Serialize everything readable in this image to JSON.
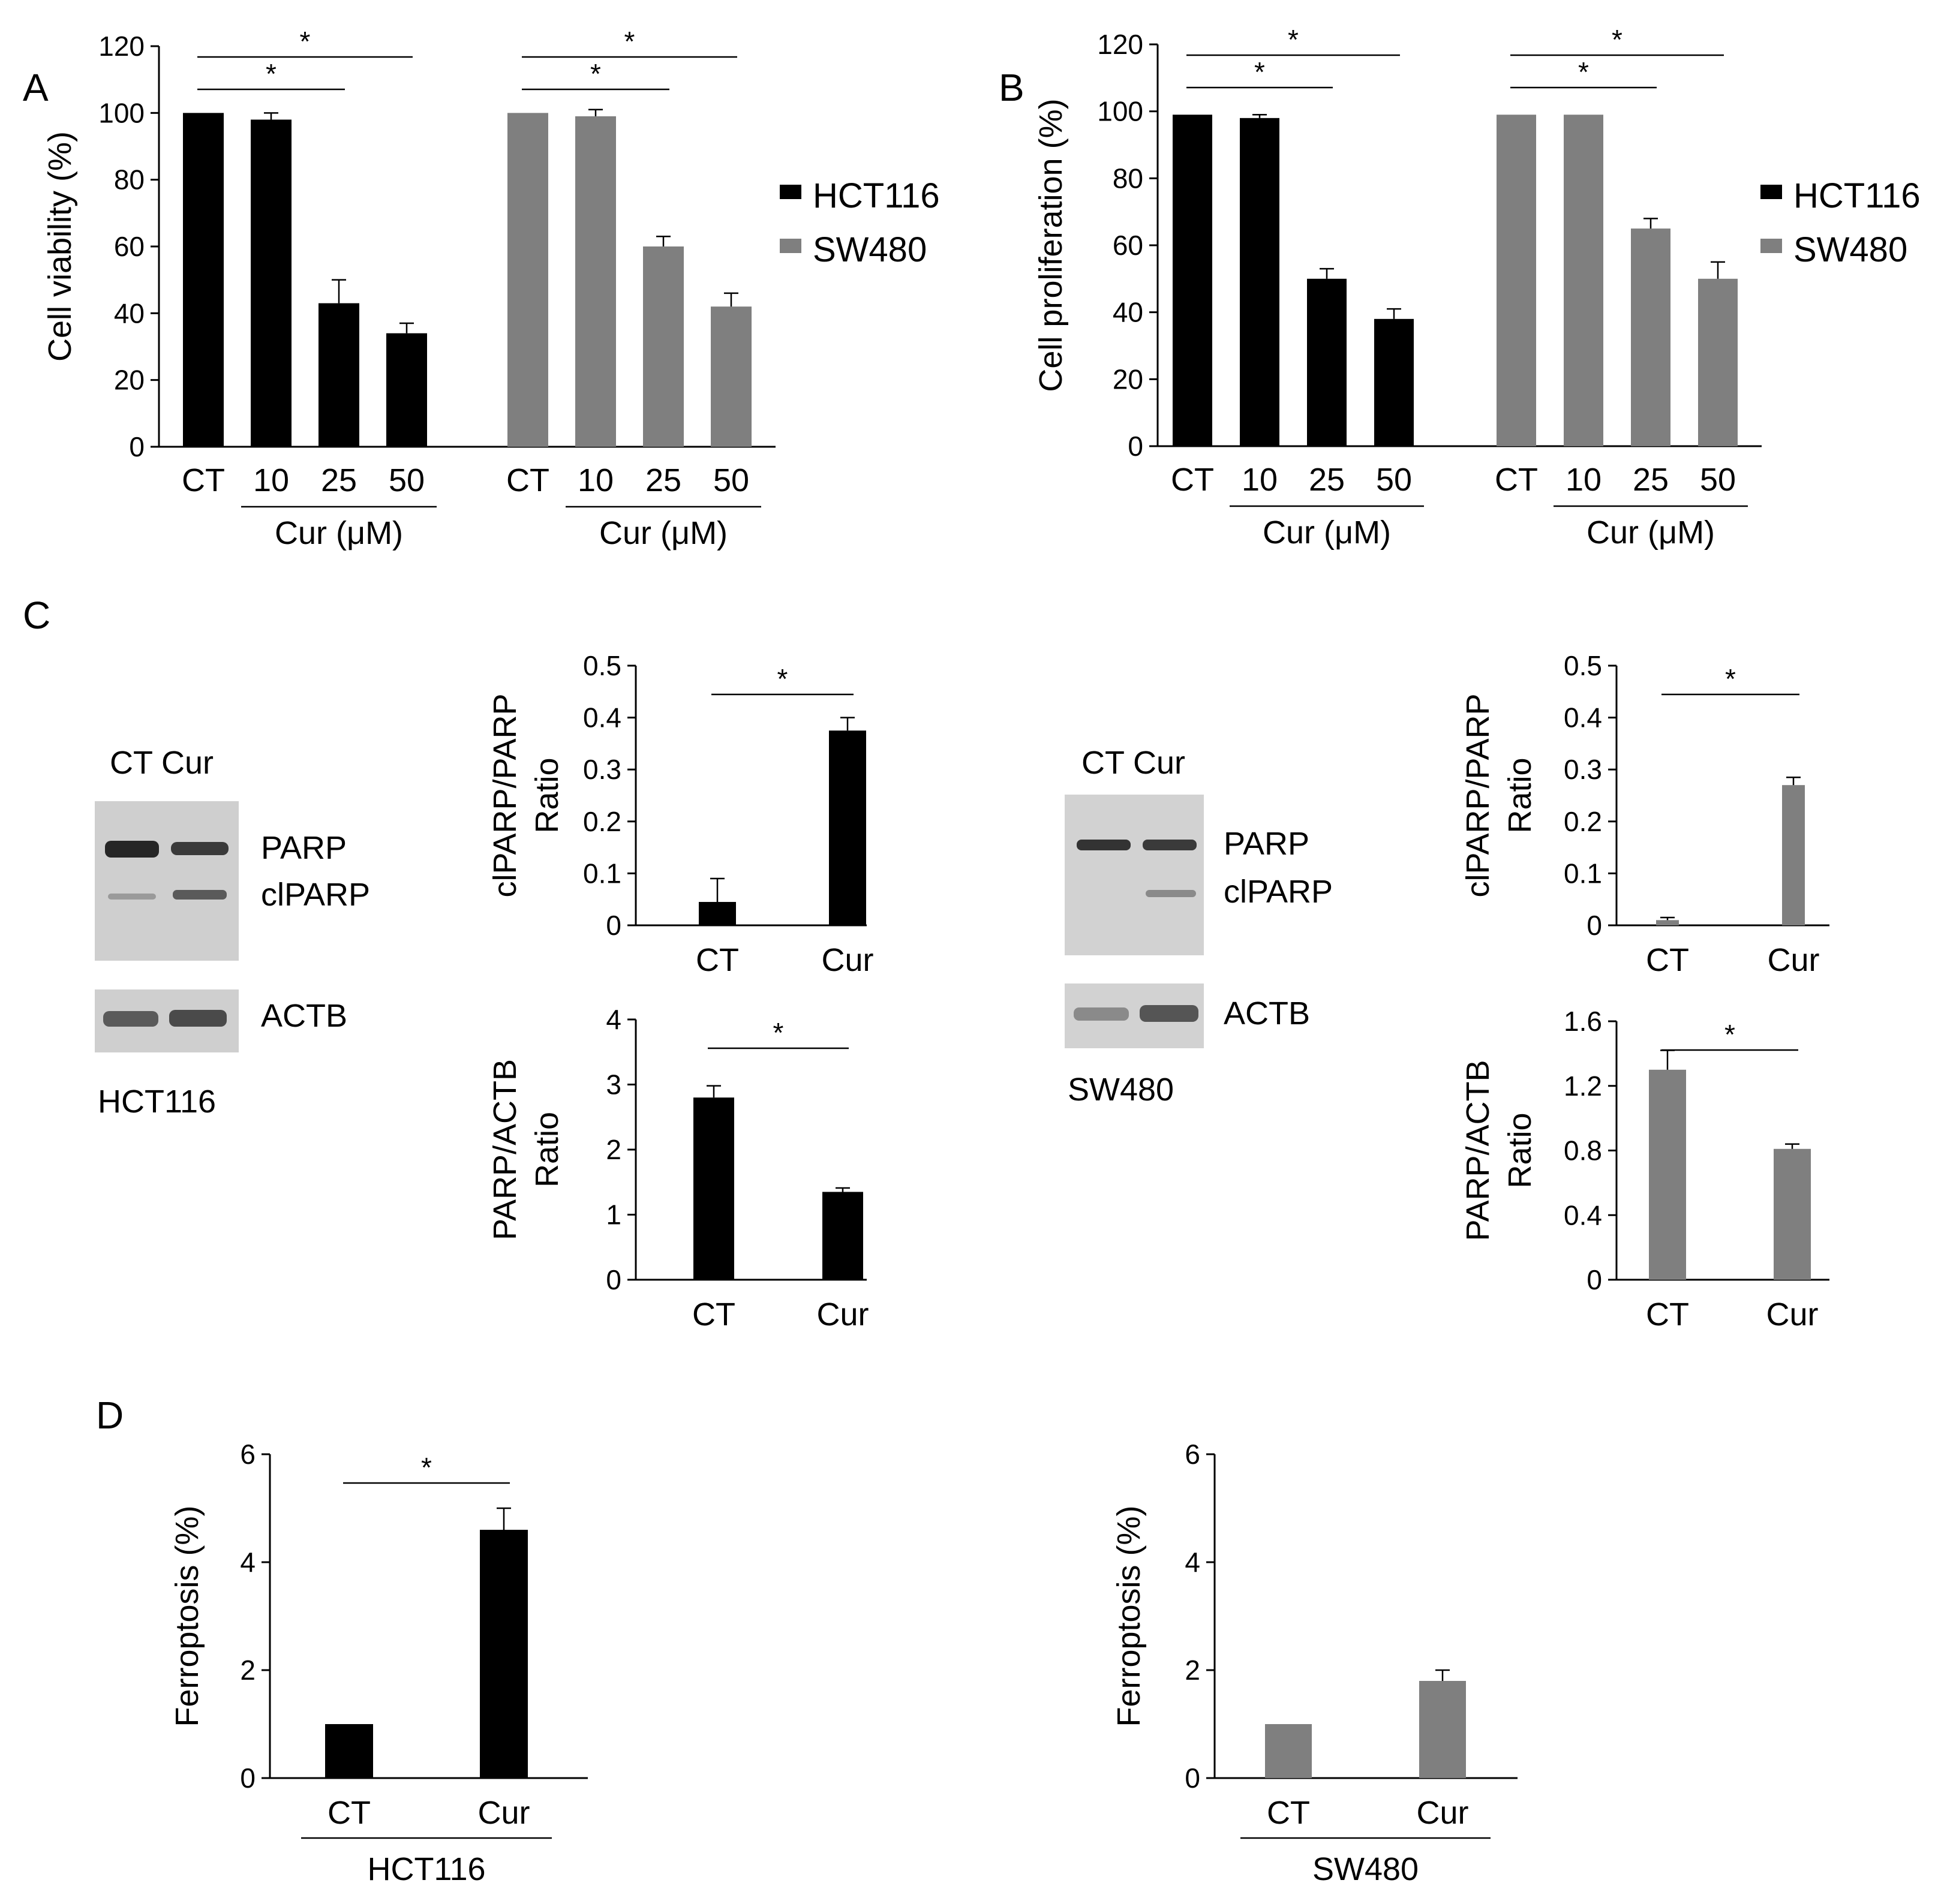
{
  "colors": {
    "HCT116": "#000000",
    "SW480": "#7f7f7f",
    "blot_bg": "#d2d2d2",
    "blot_band": "#2a2a2a"
  },
  "panels": {
    "A": "A",
    "B": "B",
    "C": "C",
    "D": "D"
  },
  "blots": [
    {
      "cols": "CT Cur",
      "band1": "PARP",
      "band2": "clPARP",
      "loading": "ACTB",
      "cell": "HCT116"
    },
    {
      "cols": "CT Cur",
      "band1": "PARP",
      "band2": "clPARP",
      "loading": "ACTB",
      "cell": "SW480"
    }
  ],
  "chart_data": [
    {
      "id": "A",
      "type": "bar",
      "ylabel": "Cell viability (%)",
      "ylim": [
        0,
        120
      ],
      "yticks": [
        "0",
        "20",
        "40",
        "60",
        "80",
        "100",
        "120"
      ],
      "groups": [
        {
          "name": "HCT116",
          "categories": [
            "CT",
            "10",
            "25",
            "50"
          ],
          "values": [
            100,
            98,
            43,
            34
          ],
          "errors": [
            0,
            2,
            7,
            3
          ],
          "xlabel": "Cur (μM)"
        },
        {
          "name": "SW480",
          "categories": [
            "CT",
            "10",
            "25",
            "50"
          ],
          "values": [
            100,
            99,
            60,
            42
          ],
          "errors": [
            0,
            2,
            3,
            4
          ],
          "xlabel": "Cur (μM)"
        }
      ],
      "legend": [
        "HCT116",
        "SW480"
      ],
      "significance": [
        {
          "group": 0,
          "from": 0,
          "to": 2,
          "label": "*"
        },
        {
          "group": 0,
          "from": 0,
          "to": 3,
          "label": "*"
        },
        {
          "group": 1,
          "from": 0,
          "to": 2,
          "label": "*"
        },
        {
          "group": 1,
          "from": 0,
          "to": 3,
          "label": "*"
        }
      ]
    },
    {
      "id": "B",
      "type": "bar",
      "ylabel": "Cell proliferation (%)",
      "ylim": [
        0,
        120
      ],
      "yticks": [
        "0",
        "20",
        "40",
        "60",
        "80",
        "100",
        "120"
      ],
      "groups": [
        {
          "name": "HCT116",
          "categories": [
            "CT",
            "10",
            "25",
            "50"
          ],
          "values": [
            99,
            98,
            50,
            38
          ],
          "errors": [
            0,
            1,
            3,
            3
          ],
          "xlabel": "Cur (μM)"
        },
        {
          "name": "SW480",
          "categories": [
            "CT",
            "10",
            "25",
            "50"
          ],
          "values": [
            99,
            99,
            65,
            50
          ],
          "errors": [
            0,
            0,
            3,
            5
          ],
          "xlabel": "Cur (μM)"
        }
      ],
      "legend": [
        "HCT116",
        "SW480"
      ],
      "significance": [
        {
          "group": 0,
          "from": 0,
          "to": 2,
          "label": "*"
        },
        {
          "group": 0,
          "from": 0,
          "to": 3,
          "label": "*"
        },
        {
          "group": 1,
          "from": 0,
          "to": 2,
          "label": "*"
        },
        {
          "group": 1,
          "from": 0,
          "to": 3,
          "label": "*"
        }
      ]
    },
    {
      "id": "C1",
      "type": "bar",
      "series": "HCT116",
      "ylabel": [
        "clPARP/PARP",
        "Ratio"
      ],
      "ylim": [
        0,
        0.5
      ],
      "yticks": [
        "0",
        "0.1",
        "0.2",
        "0.3",
        "0.4",
        "0.5"
      ],
      "categories": [
        "CT",
        "Cur"
      ],
      "values": [
        0.045,
        0.375
      ],
      "errors": [
        0.045,
        0.025
      ],
      "significance": "*"
    },
    {
      "id": "C2",
      "type": "bar",
      "series": "HCT116",
      "ylabel": [
        "PARP/ACTB",
        "Ratio"
      ],
      "ylim": [
        0,
        4
      ],
      "yticks": [
        "0",
        "1",
        "2",
        "3",
        "4"
      ],
      "categories": [
        "CT",
        "Cur"
      ],
      "values": [
        2.8,
        1.35
      ],
      "errors": [
        0.18,
        0.06
      ],
      "significance": "*"
    },
    {
      "id": "C3",
      "type": "bar",
      "series": "SW480",
      "ylabel": [
        "clPARP/PARP",
        "Ratio"
      ],
      "ylim": [
        0,
        0.5
      ],
      "yticks": [
        "0",
        "0.1",
        "0.2",
        "0.3",
        "0.4",
        "0.5"
      ],
      "categories": [
        "CT",
        "Cur"
      ],
      "values": [
        0.01,
        0.27
      ],
      "errors": [
        0.005,
        0.015
      ],
      "significance": "*"
    },
    {
      "id": "C4",
      "type": "bar",
      "series": "SW480",
      "ylabel": [
        "PARP/ACTB",
        "Ratio"
      ],
      "ylim": [
        0,
        1.6
      ],
      "yticks": [
        "0",
        "0.4",
        "0.8",
        "1.2",
        "1.6"
      ],
      "categories": [
        "CT",
        "Cur"
      ],
      "values": [
        1.3,
        0.81
      ],
      "errors": [
        0.12,
        0.03
      ],
      "significance": "*"
    },
    {
      "id": "D1",
      "type": "bar",
      "series": "HCT116",
      "ylabel": [
        "Ferroptosis (%)"
      ],
      "ylim": [
        0,
        6
      ],
      "yticks": [
        "0",
        "2",
        "4",
        "6"
      ],
      "categories": [
        "CT",
        "Cur"
      ],
      "values": [
        1.0,
        4.6
      ],
      "errors": [
        0,
        0.4
      ],
      "significance": "*",
      "xlabel": "HCT116"
    },
    {
      "id": "D2",
      "type": "bar",
      "series": "SW480",
      "ylabel": [
        "Ferroptosis (%)"
      ],
      "ylim": [
        0,
        6
      ],
      "yticks": [
        "0",
        "2",
        "4",
        "6"
      ],
      "categories": [
        "CT",
        "Cur"
      ],
      "values": [
        1.0,
        1.8
      ],
      "errors": [
        0,
        0.2
      ],
      "significance": "",
      "xlabel": "SW480"
    }
  ]
}
